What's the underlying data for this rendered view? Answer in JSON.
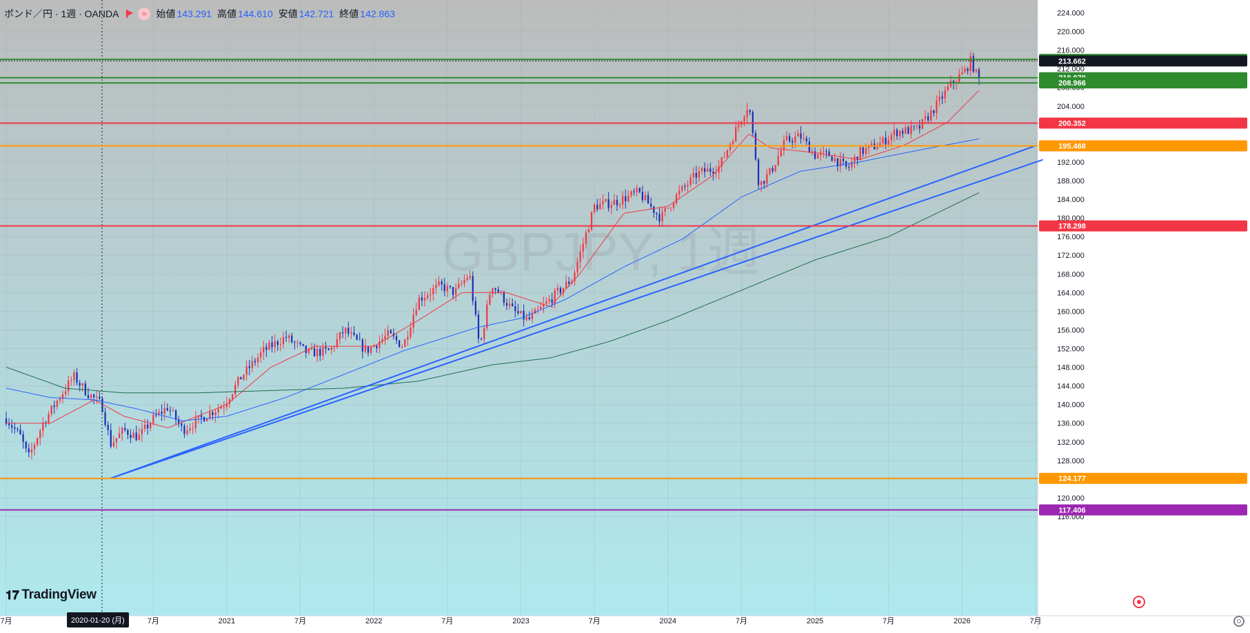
{
  "header": {
    "symbol": "ポンド／円 · 1週 · OANDA",
    "icon_flag": "flag-icon",
    "icon_wave": "wave-icon",
    "open_label": "始値",
    "open_value": "143.291",
    "high_label": "高値",
    "high_value": "144.610",
    "low_label": "安値",
    "low_value": "142.721",
    "close_label": "終値",
    "close_value": "142.863"
  },
  "watermark": "GBPJPY, 1週",
  "logo_text": "TradingView",
  "crosshair_date": "2020-01-20 (月)",
  "colors": {
    "bg_top": "#bcbcbc",
    "bg_bottom": "#aee9ef",
    "up": "#f23645",
    "down": "#1c2fb3",
    "ma_short": "#f23645",
    "ma_mid": "#2962ff",
    "ma_long": "#1e6b4a",
    "trend": "#2962ff",
    "green_level": "#2e8b2e",
    "red_level": "#f23645",
    "orange_level": "#ff9800",
    "purple_level": "#9c27b0",
    "current_price": "#131722"
  },
  "chart_data": {
    "type": "candlestick",
    "timeframe": "1週",
    "symbol": "GBPJPY",
    "y_range": [
      116,
      225
    ],
    "y_ticks": [
      "224.000",
      "220.000",
      "216.000",
      "212.000",
      "208.000",
      "204.000",
      "200.000",
      "196.000",
      "192.000",
      "188.000",
      "184.000",
      "180.000",
      "176.000",
      "172.000",
      "168.000",
      "164.000",
      "160.000",
      "156.000",
      "152.000",
      "148.000",
      "144.000",
      "140.000",
      "136.000",
      "132.000",
      "128.000",
      "124.000",
      "120.000",
      "116.000"
    ],
    "x_ticks": [
      {
        "label": "7月",
        "date": "2019.50"
      },
      {
        "label": "7月",
        "date": "2020.50"
      },
      {
        "label": "2021",
        "date": "2021.00"
      },
      {
        "label": "7月",
        "date": "2021.50"
      },
      {
        "label": "2022",
        "date": "2022.00"
      },
      {
        "label": "7月",
        "date": "2022.50"
      },
      {
        "label": "2023",
        "date": "2023.00"
      },
      {
        "label": "7月",
        "date": "2023.50"
      },
      {
        "label": "2024",
        "date": "2024.00"
      },
      {
        "label": "7月",
        "date": "2024.50"
      },
      {
        "label": "2025",
        "date": "2025.00"
      },
      {
        "label": "7月",
        "date": "2025.50"
      },
      {
        "label": "2026",
        "date": "2026.00"
      },
      {
        "label": "7月",
        "date": "2026.50"
      }
    ],
    "price_anchors": [
      [
        "2019.50",
        137.0
      ],
      [
        "2019.60",
        133.0
      ],
      [
        "2019.65",
        128.5
      ],
      [
        "2019.75",
        136.0
      ],
      [
        "2019.85",
        141.0
      ],
      [
        "2019.96",
        146.0
      ],
      [
        "2020.05",
        142.5
      ],
      [
        "2020.15",
        140.0
      ],
      [
        "2020.21",
        131.5
      ],
      [
        "2020.30",
        134.5
      ],
      [
        "2020.40",
        133.0
      ],
      [
        "2020.50",
        137.0
      ],
      [
        "2020.60",
        139.5
      ],
      [
        "2020.70",
        134.5
      ],
      [
        "2020.85",
        137.5
      ],
      [
        "2020.98",
        140.0
      ],
      [
        "2021.10",
        146.0
      ],
      [
        "2021.25",
        151.5
      ],
      [
        "2021.40",
        154.5
      ],
      [
        "2021.55",
        151.0
      ],
      [
        "2021.70",
        151.5
      ],
      [
        "2021.80",
        156.0
      ],
      [
        "2021.95",
        151.5
      ],
      [
        "2022.10",
        155.0
      ],
      [
        "2022.20",
        152.5
      ],
      [
        "2022.30",
        162.5
      ],
      [
        "2022.45",
        165.5
      ],
      [
        "2022.55",
        164.0
      ],
      [
        "2022.65",
        168.0
      ],
      [
        "2022.72",
        152.0
      ],
      [
        "2022.80",
        166.0
      ],
      [
        "2022.95",
        160.0
      ],
      [
        "2023.05",
        158.0
      ],
      [
        "2023.20",
        162.5
      ],
      [
        "2023.35",
        167.0
      ],
      [
        "2023.50",
        182.5
      ],
      [
        "2023.65",
        183.5
      ],
      [
        "2023.80",
        185.5
      ],
      [
        "2023.95",
        180.0
      ],
      [
        "2024.05",
        184.5
      ],
      [
        "2024.20",
        189.5
      ],
      [
        "2024.35",
        191.0
      ],
      [
        "2024.50",
        201.5
      ],
      [
        "2024.55",
        204.5
      ],
      [
        "2024.62",
        187.0
      ],
      [
        "2024.70",
        190.0
      ],
      [
        "2024.80",
        196.5
      ],
      [
        "2024.90",
        197.5
      ],
      [
        "2025.00",
        193.5
      ],
      [
        "2025.10",
        193.5
      ],
      [
        "2025.22",
        190.5
      ],
      [
        "2025.30",
        194.0
      ],
      [
        "2025.45",
        196.0
      ],
      [
        "2025.55",
        198.5
      ],
      [
        "2025.70",
        199.0
      ],
      [
        "2025.80",
        203.0
      ],
      [
        "2025.92",
        208.5
      ],
      [
        "2026.02",
        211.5
      ],
      [
        "2026.06",
        213.8
      ],
      [
        "2026.10",
        210.5
      ],
      [
        "2026.12",
        209.5
      ]
    ],
    "moving_averages": [
      {
        "period": "short",
        "anchors": [
          [
            "2019.50",
            136.0
          ],
          [
            "2019.80",
            136.0
          ],
          [
            "2020.10",
            141.0
          ],
          [
            "2020.30",
            137.5
          ],
          [
            "2020.60",
            135.0
          ],
          [
            "2021.00",
            140.0
          ],
          [
            "2021.30",
            148.0
          ],
          [
            "2021.60",
            152.5
          ],
          [
            "2022.00",
            152.5
          ],
          [
            "2022.30",
            158.0
          ],
          [
            "2022.60",
            164.0
          ],
          [
            "2022.90",
            164.0
          ],
          [
            "2023.20",
            161.0
          ],
          [
            "2023.40",
            168.0
          ],
          [
            "2023.70",
            181.0
          ],
          [
            "2024.00",
            182.5
          ],
          [
            "2024.30",
            189.0
          ],
          [
            "2024.55",
            198.0
          ],
          [
            "2024.70",
            195.0
          ],
          [
            "2025.00",
            194.0
          ],
          [
            "2025.30",
            192.5
          ],
          [
            "2025.60",
            195.5
          ],
          [
            "2025.90",
            200.5
          ],
          [
            "2026.12",
            207.5
          ]
        ]
      },
      {
        "period": "mid",
        "anchors": [
          [
            "2019.50",
            143.5
          ],
          [
            "2019.80",
            141.5
          ],
          [
            "2020.10",
            141.0
          ],
          [
            "2020.40",
            139.0
          ],
          [
            "2020.70",
            136.5
          ],
          [
            "2021.00",
            137.5
          ],
          [
            "2021.40",
            141.5
          ],
          [
            "2021.80",
            146.5
          ],
          [
            "2022.20",
            151.5
          ],
          [
            "2022.70",
            156.5
          ],
          [
            "2023.00",
            158.5
          ],
          [
            "2023.30",
            162.5
          ],
          [
            "2023.70",
            169.5
          ],
          [
            "2024.10",
            175.5
          ],
          [
            "2024.50",
            184.5
          ],
          [
            "2024.90",
            190.0
          ],
          [
            "2025.30",
            192.0
          ],
          [
            "2025.70",
            194.5
          ],
          [
            "2026.12",
            197.0
          ]
        ]
      },
      {
        "period": "long",
        "anchors": [
          [
            "2019.50",
            148.0
          ],
          [
            "2019.90",
            143.5
          ],
          [
            "2020.30",
            142.5
          ],
          [
            "2020.80",
            142.5
          ],
          [
            "2021.30",
            143.0
          ],
          [
            "2021.80",
            143.5
          ],
          [
            "2022.30",
            145.0
          ],
          [
            "2022.80",
            148.5
          ],
          [
            "2023.20",
            150.0
          ],
          [
            "2023.60",
            153.5
          ],
          [
            "2024.00",
            158.0
          ],
          [
            "2024.50",
            164.5
          ],
          [
            "2025.00",
            171.0
          ],
          [
            "2025.50",
            176.0
          ],
          [
            "2026.12",
            185.5
          ]
        ]
      }
    ],
    "horizontal_levels": [
      {
        "value": 214.01,
        "label": "214.010",
        "color": "#2e8b2e"
      },
      {
        "value": 213.662,
        "label": "213.662",
        "color": "#131722",
        "style": "dotted"
      },
      {
        "value": 210.07,
        "label": "210.070",
        "color": "#2e8b2e"
      },
      {
        "value": 208.966,
        "label": "208.966",
        "color": "#2e8b2e"
      },
      {
        "value": 200.352,
        "label": "200.352",
        "color": "#f23645"
      },
      {
        "value": 195.468,
        "label": "195.468",
        "color": "#ff9800"
      },
      {
        "value": 178.298,
        "label": "178.298",
        "color": "#f23645"
      },
      {
        "value": 124.177,
        "label": "124.177",
        "color": "#ff9800"
      },
      {
        "value": 117.406,
        "label": "117.406",
        "color": "#9c27b0"
      }
    ],
    "trendlines": [
      {
        "from": [
          "2020.21",
          124.177
        ],
        "to": [
          "2026.50",
          195.5
        ]
      },
      {
        "from": [
          "2020.21",
          124.177
        ],
        "to": [
          "2026.55",
          192.5
        ]
      }
    ]
  }
}
